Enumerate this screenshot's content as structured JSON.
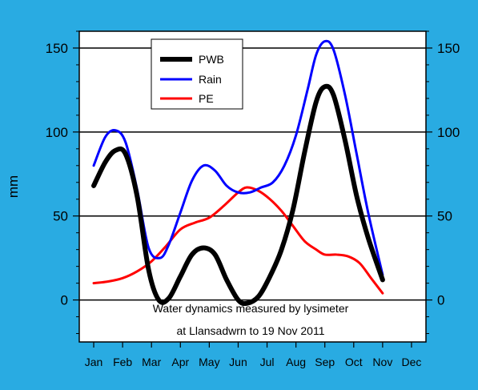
{
  "chart_data": {
    "type": "line",
    "ylabel": "mm",
    "xlabel": "",
    "ylim": [
      -25,
      160
    ],
    "yticks_major": [
      0,
      50,
      100,
      150
    ],
    "gridlines_y": [
      0,
      50,
      100,
      150
    ],
    "grid": true,
    "right_axis_mirror": true,
    "categories": [
      "Jan",
      "Feb",
      "Mar",
      "Apr",
      "May",
      "Jun",
      "Jul",
      "Aug",
      "Sep",
      "Oct",
      "Nov",
      "Dec"
    ],
    "annotation_lines": [
      "Water dynamics measured by lysimeter",
      "at Llansadwrn to 19 Nov 2011"
    ],
    "legend_position": "top-left",
    "series": [
      {
        "name": "PWB",
        "color": "#000000",
        "stroke": "thick",
        "x": [
          1,
          1.4,
          1.75,
          2.1,
          2.5,
          2.9,
          3.25,
          3.6,
          4.0,
          4.4,
          4.8,
          5.2,
          5.6,
          6.0,
          6.3,
          6.7,
          7.1,
          7.5,
          7.9,
          8.3,
          8.7,
          9.0,
          9.3,
          9.7,
          10.1,
          10.5,
          11.0
        ],
        "y": [
          68,
          82,
          89,
          87,
          62,
          18,
          0,
          1,
          14,
          27,
          31,
          27,
          12,
          0,
          -2,
          2,
          14,
          30,
          54,
          88,
          118,
          127,
          122,
          95,
          62,
          37,
          12
        ]
      },
      {
        "name": "Rain",
        "color": "#0000FF",
        "stroke": "normal",
        "x": [
          1,
          1.4,
          1.75,
          2.1,
          2.5,
          2.9,
          3.3,
          3.6,
          4.0,
          4.4,
          4.8,
          5.2,
          5.6,
          6.0,
          6.4,
          6.8,
          7.2,
          7.6,
          8.0,
          8.4,
          8.7,
          9.0,
          9.3,
          9.7,
          10.1,
          10.5,
          11.0
        ],
        "y": [
          80,
          97,
          101,
          94,
          66,
          31,
          25,
          33,
          52,
          71,
          80,
          77,
          68,
          64,
          64,
          67,
          70,
          80,
          98,
          125,
          146,
          154,
          149,
          122,
          87,
          52,
          15
        ]
      },
      {
        "name": "PE",
        "color": "#FF0000",
        "stroke": "normal",
        "x": [
          1,
          1.5,
          2.0,
          2.5,
          3.0,
          3.5,
          4.0,
          4.5,
          5.0,
          5.5,
          6.0,
          6.3,
          6.7,
          7.1,
          7.5,
          7.9,
          8.3,
          8.7,
          9.0,
          9.4,
          9.8,
          10.2,
          10.6,
          11.0
        ],
        "y": [
          10,
          11,
          13,
          17,
          23,
          32,
          42,
          46,
          49,
          56,
          64,
          67,
          65,
          60,
          53,
          44,
          35,
          30,
          27,
          27,
          26,
          22,
          13,
          4
        ]
      }
    ]
  }
}
